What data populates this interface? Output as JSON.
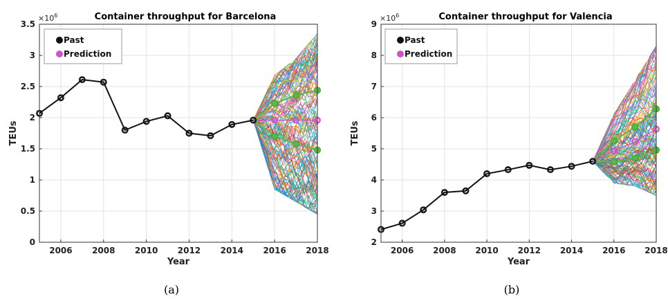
{
  "chart_data": [
    {
      "type": "line",
      "title": "Container throughput for Barcelona",
      "xlabel": "Year",
      "ylabel": "TEUs",
      "exponent": "×10",
      "exponent_power": "6",
      "caption": "(a)",
      "xlim": [
        2005,
        2018
      ],
      "ylim": [
        0,
        3500000
      ],
      "xticks": [
        "2006",
        "2008",
        "2010",
        "2012",
        "2014",
        "2016",
        "2018"
      ],
      "yticks": [
        "0",
        "0.5",
        "1",
        "1.5",
        "2",
        "2.5",
        "3",
        "3.5"
      ],
      "grid": true,
      "legend_position": "top-left",
      "series": [
        {
          "name": "Past",
          "color": "#111111",
          "x": [
            2005,
            2006,
            2007,
            2008,
            2009,
            2010,
            2011,
            2012,
            2013,
            2014,
            2015
          ],
          "values": [
            2070000,
            2320000,
            2610000,
            2570000,
            1800000,
            1940000,
            2030000,
            1750000,
            1710000,
            1890000,
            1960000
          ]
        },
        {
          "name": "Prediction",
          "color": "#cc55cc",
          "x": [
            2016,
            2017,
            2018
          ],
          "values": [
            1960000,
            1960000,
            1960000
          ]
        }
      ],
      "bounds": {
        "color": "#55bb44",
        "x": [
          2016,
          2017,
          2018
        ],
        "upper": [
          2230000,
          2360000,
          2440000
        ],
        "lower": [
          1700000,
          1580000,
          1480000
        ]
      },
      "simulation_envelope": {
        "x": [
          2015,
          2016,
          2017,
          2018
        ],
        "center": [
          1960000,
          1960000,
          1960000,
          1960000
        ],
        "upper": [
          1960000,
          2680000,
          2950000,
          3350000
        ],
        "lower": [
          1960000,
          850000,
          650000,
          450000
        ]
      }
    },
    {
      "type": "line",
      "title": "Container throughput for Valencia",
      "xlabel": "Year",
      "ylabel": "TEUs",
      "exponent": "×10",
      "exponent_power": "6",
      "caption": "(b)",
      "xlim": [
        2005,
        2018
      ],
      "ylim": [
        2000000,
        9000000
      ],
      "xticks": [
        "2006",
        "2008",
        "2010",
        "2012",
        "2014",
        "2016",
        "2018"
      ],
      "yticks": [
        "2",
        "3",
        "4",
        "5",
        "6",
        "7",
        "8",
        "9"
      ],
      "grid": true,
      "legend_position": "top-left",
      "series": [
        {
          "name": "Past",
          "color": "#111111",
          "x": [
            2005,
            2006,
            2007,
            2008,
            2009,
            2010,
            2011,
            2012,
            2013,
            2014,
            2015
          ],
          "values": [
            2410000,
            2610000,
            3040000,
            3600000,
            3650000,
            4200000,
            4330000,
            4470000,
            4330000,
            4440000,
            4600000
          ]
        },
        {
          "name": "Prediction",
          "color": "#cc55cc",
          "x": [
            2016,
            2017,
            2018
          ],
          "values": [
            4930000,
            5230000,
            5630000
          ]
        }
      ],
      "bounds": {
        "color": "#55bb44",
        "x": [
          2016,
          2017,
          2018
        ],
        "upper": [
          5250000,
          5700000,
          6280000
        ],
        "lower": [
          4580000,
          4700000,
          4960000
        ]
      },
      "simulation_envelope": {
        "x": [
          2015,
          2016,
          2017,
          2018
        ],
        "center": [
          4600000,
          4930000,
          5230000,
          5630000
        ],
        "upper": [
          4600000,
          6100000,
          7200000,
          8300000
        ],
        "lower": [
          4600000,
          3900000,
          3800000,
          3500000
        ]
      }
    }
  ]
}
